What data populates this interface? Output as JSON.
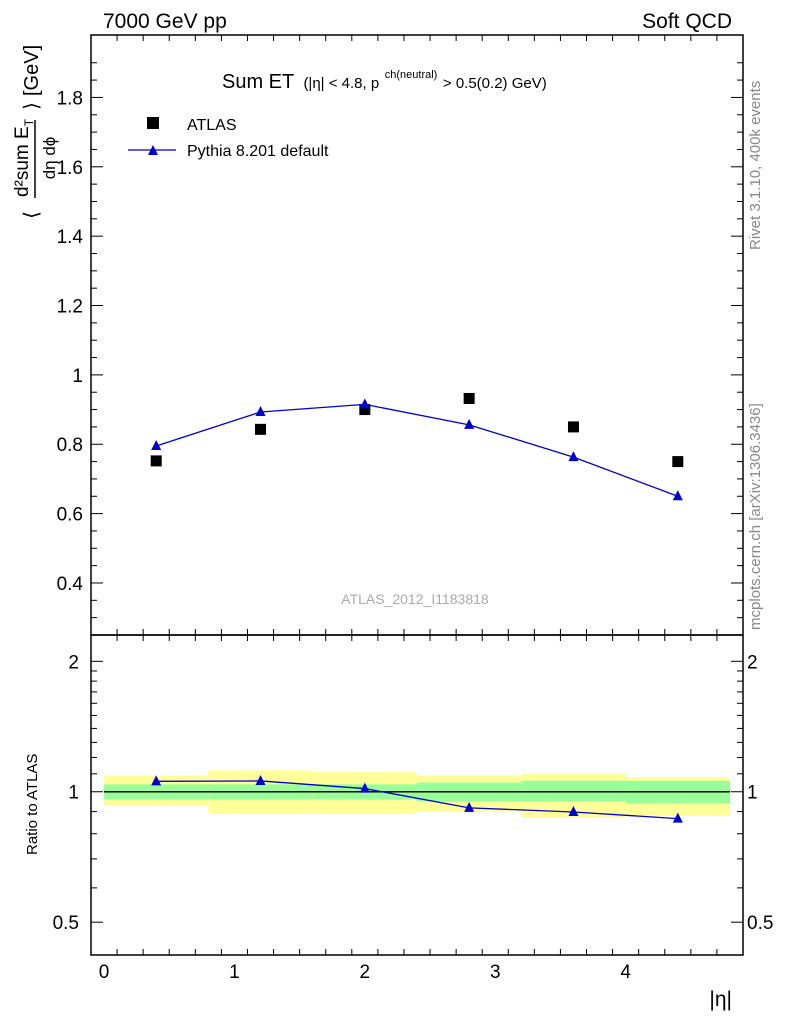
{
  "header": {
    "left": "7000 GeV pp",
    "right": "Soft QCD"
  },
  "side": {
    "rivet": "Rivet 3.1.10,  400k events",
    "mcplots": "mcplots.cern.ch [arXiv:1306.3436]"
  },
  "chart_data": {
    "type": "scatter",
    "title": "Sum ET",
    "title_cut": "(|η| < 4.8, p",
    "title_sup": "ch(neutral)",
    "title_tail": " > 0.5(0.2) GeV)",
    "watermark": "ATLAS_2012_I1183818",
    "xlabel": "|η|",
    "ylabel_main": "[GeV]",
    "ylabel_ratio": "Ratio to ATLAS",
    "x": [
      0.4,
      1.2,
      2.0,
      2.8,
      3.6,
      4.4
    ],
    "x_edges": [
      0.0,
      0.8,
      1.6,
      2.4,
      3.2,
      4.0,
      4.8
    ],
    "xlim": [
      -0.1,
      4.9
    ],
    "ylim_main": [
      0.25,
      1.98
    ],
    "ylim_ratio": [
      0.42,
      2.3
    ],
    "ratio_log": true,
    "main_yticks": [
      "0.4",
      "0.6",
      "0.8",
      "1",
      "1.2",
      "1.4",
      "1.6",
      "1.8"
    ],
    "main_ytick_values": [
      0.4,
      0.6,
      0.8,
      1.0,
      1.2,
      1.4,
      1.6,
      1.8
    ],
    "ratio_yticks": [
      "0.5",
      "1",
      "2"
    ],
    "ratio_ytick_values": [
      0.5,
      1.0,
      2.0
    ],
    "xticks": [
      "0",
      "1",
      "2",
      "3",
      "4"
    ],
    "xtick_values": [
      0,
      1,
      2,
      3,
      4
    ],
    "series": [
      {
        "name": "ATLAS",
        "marker": "square",
        "color": "#000000",
        "values": [
          0.752,
          0.843,
          0.9,
          0.932,
          0.85,
          0.75
        ],
        "band_inner": [
          [
            0.96,
            1.04
          ],
          [
            0.96,
            1.04
          ],
          [
            0.96,
            1.04
          ],
          [
            0.95,
            1.05
          ],
          [
            0.95,
            1.06
          ],
          [
            0.94,
            1.06
          ]
        ],
        "band_outer": [
          [
            0.93,
            1.09
          ],
          [
            0.89,
            1.12
          ],
          [
            0.89,
            1.11
          ],
          [
            0.9,
            1.09
          ],
          [
            0.87,
            1.1
          ],
          [
            0.88,
            1.08
          ]
        ]
      },
      {
        "name": "Pythia 8.201 default",
        "marker": "triangle",
        "color": "#0000cc",
        "values": [
          0.795,
          0.893,
          0.915,
          0.856,
          0.763,
          0.65
        ],
        "ratio": [
          1.057,
          1.059,
          1.017,
          0.918,
          0.898,
          0.867
        ]
      }
    ],
    "legend_position": "top-left",
    "colors": {
      "band_inner": "#99ff99",
      "band_outer": "#ffff99"
    }
  }
}
